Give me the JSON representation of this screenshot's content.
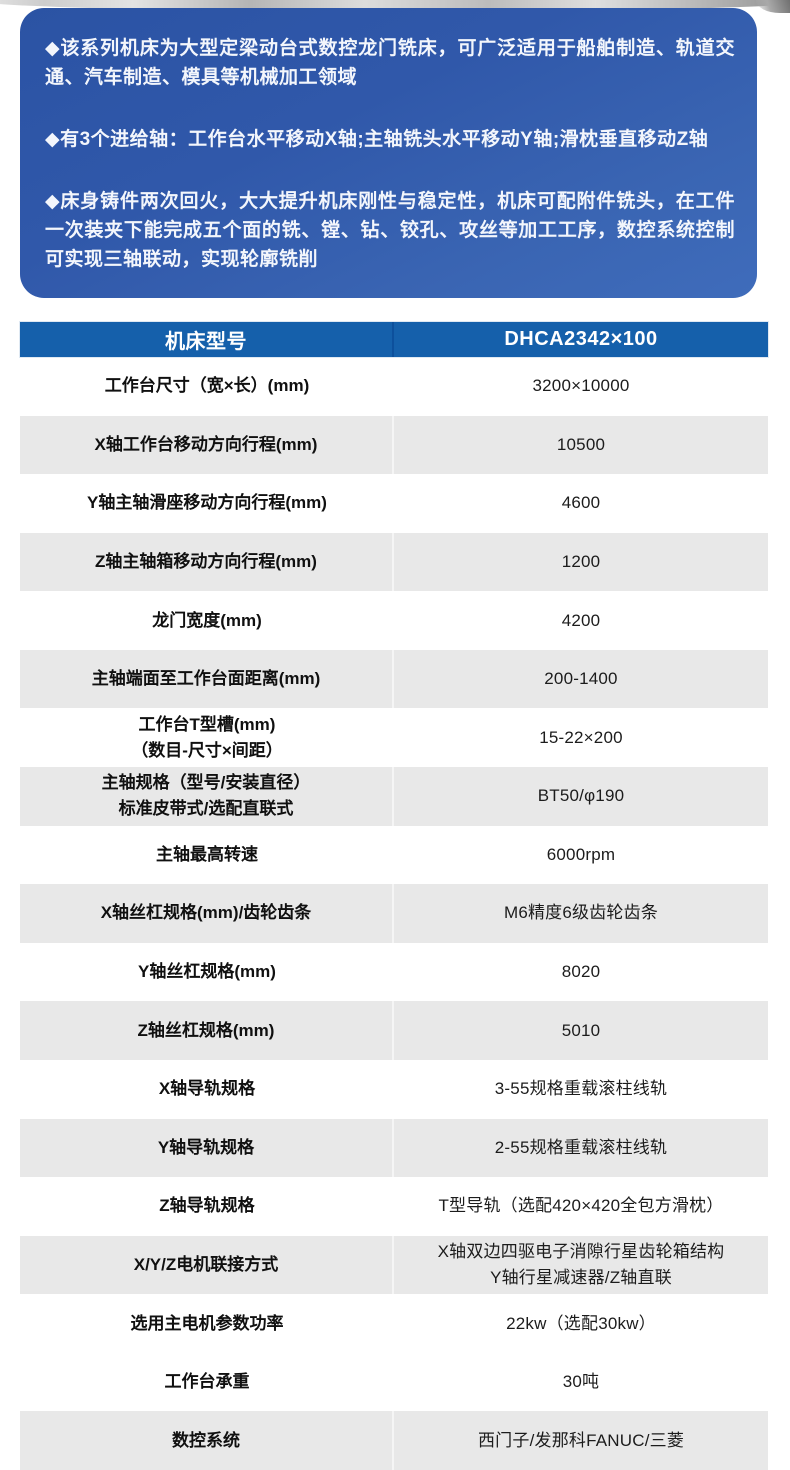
{
  "intro": {
    "bullets": [
      "◆该系列机床为大型定梁动台式数控龙门铣床，可广泛适用于船舶制造、轨道交通、汽车制造、模具等机械加工领域",
      "◆有3个进给轴：工作台水平移动X轴;主轴铣头水平移动Y轴;滑枕垂直移动Z轴",
      "◆床身铸件两次回火，大大提升机床刚性与稳定性，机床可配附件铣头，在工件一次装夹下能完成五个面的铣、镗、钻、铰孔、攻丝等加工工序，数控系统控制可实现三轴联动，实现轮廓铣削"
    ]
  },
  "table": {
    "header": {
      "model_label": "机床型号",
      "model_value": "DHCA2342×100"
    },
    "rows": [
      {
        "label": [
          "工作台尺寸（宽×长）(mm)"
        ],
        "value": [
          "3200×10000"
        ],
        "shade": "white"
      },
      {
        "label": [
          "X轴工作台移动方向行程(mm)"
        ],
        "value": [
          "10500"
        ],
        "shade": "gray"
      },
      {
        "label": [
          "Y轴主轴滑座移动方向行程(mm)"
        ],
        "value": [
          "4600"
        ],
        "shade": "white"
      },
      {
        "label": [
          "Z轴主轴箱移动方向行程(mm)"
        ],
        "value": [
          "1200"
        ],
        "shade": "gray"
      },
      {
        "label": [
          "龙门宽度(mm)"
        ],
        "value": [
          "4200"
        ],
        "shade": "white"
      },
      {
        "label": [
          "主轴端面至工作台面距离(mm)"
        ],
        "value": [
          "200-1400"
        ],
        "shade": "gray"
      },
      {
        "label": [
          "工作台T型槽(mm)",
          "（数目-尺寸×间距）"
        ],
        "value": [
          "15-22×200"
        ],
        "shade": "white"
      },
      {
        "label": [
          "主轴规格（型号/安装直径）",
          "标准皮带式/选配直联式"
        ],
        "value": [
          "BT50/φ190"
        ],
        "shade": "gray"
      },
      {
        "label": [
          "主轴最高转速"
        ],
        "value": [
          "6000rpm"
        ],
        "shade": "white"
      },
      {
        "label": [
          "X轴丝杠规格(mm)/齿轮齿条"
        ],
        "value": [
          "M6精度6级齿轮齿条"
        ],
        "shade": "gray"
      },
      {
        "label": [
          "Y轴丝杠规格(mm)"
        ],
        "value": [
          "8020"
        ],
        "shade": "white"
      },
      {
        "label": [
          "Z轴丝杠规格(mm)"
        ],
        "value": [
          "5010"
        ],
        "shade": "gray"
      },
      {
        "label": [
          "X轴导轨规格"
        ],
        "value": [
          "3-55规格重载滚柱线轨"
        ],
        "shade": "white"
      },
      {
        "label": [
          "Y轴导轨规格"
        ],
        "value": [
          "2-55规格重载滚柱线轨"
        ],
        "shade": "gray"
      },
      {
        "label": [
          "Z轴导轨规格"
        ],
        "value": [
          "T型导轨（选配420×420全包方滑枕）"
        ],
        "shade": "white"
      },
      {
        "label": [
          "X/Y/Z电机联接方式"
        ],
        "value": [
          "X轴双边四驱电子消隙行星齿轮箱结构",
          "Y轴行星减速器/Z轴直联"
        ],
        "shade": "gray"
      },
      {
        "label": [
          "选用主电机参数功率"
        ],
        "value": [
          "22kw（选配30kw）"
        ],
        "shade": "white"
      },
      {
        "label": [
          "工作台承重"
        ],
        "value": [
          "30吨"
        ],
        "shade": "white"
      },
      {
        "label": [
          "数控系统"
        ],
        "value": [
          "西门子/发那科FANUC/三菱"
        ],
        "shade": "gray"
      }
    ]
  },
  "colors": {
    "intro_gradient_start": "#2b53a4",
    "intro_gradient_end": "#3f6cbb",
    "header_blue": "#1560ab",
    "header_divider_blue": "#0d509c",
    "row_gray": "#e8e8e8",
    "text_dark": "#101010",
    "text_white": "#f3f6fc"
  }
}
